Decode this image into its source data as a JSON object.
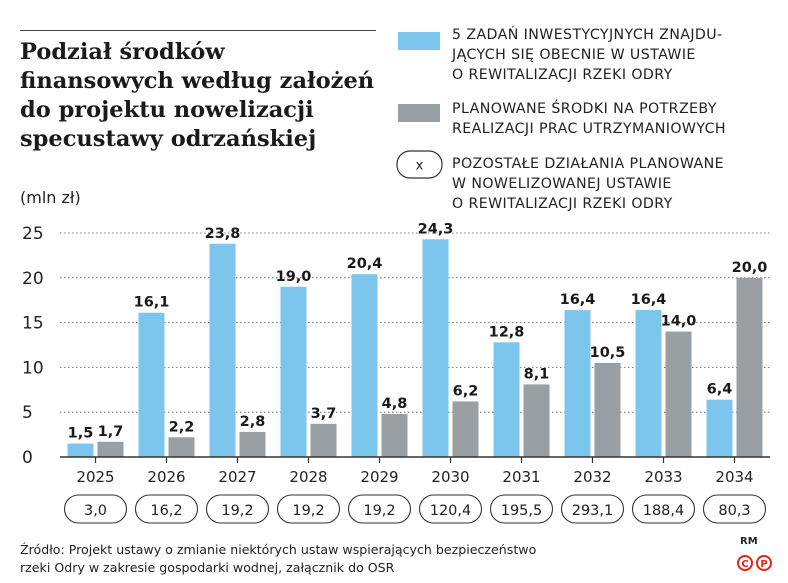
{
  "title": "Podział środków finansowych według założeń do projektu nowelizacji specustawy odrzańskiej",
  "legend": {
    "blue": "5 ZADAŃ INWESTYCYJNYCH ZNAJDU-JĄCYCH SIĘ OBECNIE W USTAWIE O REWITALIZACJI RZEKI ODRY",
    "blue_lines": [
      "5 ZADAŃ INWESTYCYJNYCH ZNAJDU-",
      "JĄCYCH SIĘ OBECNIE W USTAWIE",
      "O REWITALIZACJI RZEKI ODRY"
    ],
    "grey_lines": [
      "PLANOWANE ŚRODKI NA POTRZEBY",
      "REALIZACJI PRAC UTRZYMANIOWYCH"
    ],
    "other_symbol": "x",
    "other_lines": [
      "POZOSTAŁE DZIAŁANIA PLANOWANE",
      "W NOWELIZOWANEJ USTAWIE",
      "O REWITALIZACJI RZEKI ODRY"
    ]
  },
  "unit": "(mln zł)",
  "source": "Źródło: Projekt ustawy o zmianie niektórych ustaw wspierających bezpieczeństwo rzeki Odry w zakresie gospodarki wodnej, załącznik do OSR",
  "source_lines": [
    "Źródło: Projekt ustawy o zmianie niektórych ustaw wspierających bezpieczeństwo",
    "rzeki Odry w zakresie gospodarki wodnej, załącznik do OSR"
  ],
  "credit": "RM",
  "colors": {
    "blue": "#7cc6ee",
    "grey": "#9a9fa4",
    "axis": "#333333",
    "grid": "#555555"
  },
  "chart_data": {
    "type": "bar",
    "categories": [
      "2025",
      "2026",
      "2027",
      "2028",
      "2029",
      "2030",
      "2031",
      "2032",
      "2033",
      "2034"
    ],
    "series": [
      {
        "values": [
          1.5,
          16.1,
          23.8,
          19.0,
          20.4,
          24.3,
          12.8,
          16.4,
          16.4,
          6.4
        ],
        "labels": [
          "1,5",
          "16,1",
          "23,8",
          "19,0",
          "20,4",
          "24,3",
          "12,8",
          "16,4",
          "16,4",
          "6,4"
        ],
        "color": "#7cc6ee"
      },
      {
        "values": [
          1.7,
          2.2,
          2.8,
          3.7,
          4.8,
          6.2,
          8.1,
          10.5,
          14.0,
          20.0
        ],
        "labels": [
          "1,7",
          "2,2",
          "2,8",
          "3,7",
          "4,8",
          "6,2",
          "8,1",
          "10,5",
          "14,0",
          "20,0"
        ],
        "color": "#9a9fa4"
      }
    ],
    "other": [
      3.0,
      16.2,
      19.2,
      19.2,
      19.2,
      120.4,
      195.5,
      293.1,
      188.4,
      80.3
    ],
    "other_labels": [
      "3,0",
      "16,2",
      "19,2",
      "19,2",
      "19,2",
      "120,4",
      "195,5",
      "293,1",
      "188,4",
      "80,3"
    ],
    "yticks": [
      "0",
      "5",
      "10",
      "15",
      "20",
      "25"
    ],
    "ylim": [
      0,
      25
    ],
    "ylabel": "(mln zł)",
    "title": "Podział środków finansowych według założeń do projektu nowelizacji specustawy odrzańskiej",
    "grid": true,
    "legend_position": "top-right"
  }
}
